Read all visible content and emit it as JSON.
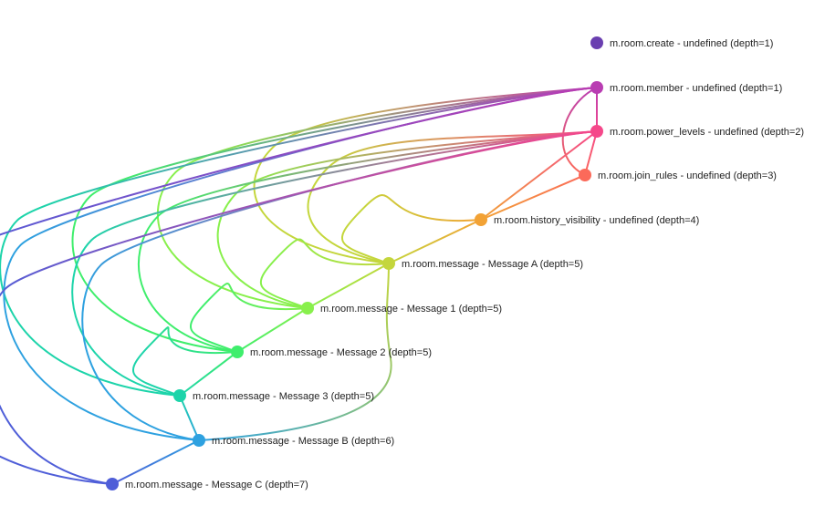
{
  "graph": {
    "nodes": [
      {
        "id": "create",
        "type": "m.room.create",
        "body": "undefined",
        "depth": 1,
        "label": "m.room.create - undefined (depth=1)",
        "color": "#6a3fb0"
      },
      {
        "id": "member",
        "type": "m.room.member",
        "body": "undefined",
        "depth": 1,
        "label": "m.room.member - undefined (depth=1)",
        "color": "#b93db2"
      },
      {
        "id": "power_levels",
        "type": "m.room.power_levels",
        "body": "undefined",
        "depth": 2,
        "label": "m.room.power_levels - undefined (depth=2)",
        "color": "#f5488a"
      },
      {
        "id": "join_rules",
        "type": "m.room.join_rules",
        "body": "undefined",
        "depth": 3,
        "label": "m.room.join_rules - undefined (depth=3)",
        "color": "#fb6a5a"
      },
      {
        "id": "history_visibility",
        "type": "m.room.history_visibility",
        "body": "undefined",
        "depth": 4,
        "label": "m.room.history_visibility - undefined (depth=4)",
        "color": "#f2a235"
      },
      {
        "id": "msgA",
        "type": "m.room.message",
        "body": "Message A",
        "depth": 5,
        "label": "m.room.message - Message A (depth=5)",
        "color": "#c4d63c"
      },
      {
        "id": "msg1",
        "type": "m.room.message",
        "body": "Message 1",
        "depth": 5,
        "label": "m.room.message - Message 1 (depth=5)",
        "color": "#88f04c"
      },
      {
        "id": "msg2",
        "type": "m.room.message",
        "body": "Message 2",
        "depth": 5,
        "label": "m.room.message - Message 2 (depth=5)",
        "color": "#3fee6c"
      },
      {
        "id": "msg3",
        "type": "m.room.message",
        "body": "Message 3",
        "depth": 5,
        "label": "m.room.message - Message 3 (depth=5)",
        "color": "#1dd4aa"
      },
      {
        "id": "msgB",
        "type": "m.room.message",
        "body": "Message B",
        "depth": 6,
        "label": "m.room.message - Message B (depth=6)",
        "color": "#2ea1e0"
      },
      {
        "id": "msgC",
        "type": "m.room.message",
        "body": "Message C",
        "depth": 7,
        "label": "m.room.message - Message C (depth=7)",
        "color": "#4f5ed8"
      }
    ],
    "edges": [
      {
        "from": "power_levels",
        "to": "member",
        "kind": "prev"
      },
      {
        "from": "join_rules",
        "to": "member",
        "kind": "auth"
      },
      {
        "from": "join_rules",
        "to": "power_levels",
        "kind": "prev"
      },
      {
        "from": "history_visibility",
        "to": "join_rules",
        "kind": "prev"
      },
      {
        "from": "history_visibility",
        "to": "power_levels",
        "kind": "prev"
      },
      {
        "from": "msgA",
        "to": "history_visibility",
        "kind": "prev"
      },
      {
        "from": "msgA",
        "to": "history_visibility",
        "kind": "auth"
      },
      {
        "from": "msgA",
        "to": "power_levels",
        "kind": "auth"
      },
      {
        "from": "msgA",
        "to": "member",
        "kind": "auth"
      },
      {
        "from": "msg1",
        "to": "msgA",
        "kind": "prev"
      },
      {
        "from": "msg1",
        "to": "msgA",
        "kind": "auth"
      },
      {
        "from": "msg1",
        "to": "power_levels",
        "kind": "auth"
      },
      {
        "from": "msg1",
        "to": "member",
        "kind": "auth"
      },
      {
        "from": "msg2",
        "to": "msg1",
        "kind": "prev"
      },
      {
        "from": "msg2",
        "to": "msg1",
        "kind": "auth"
      },
      {
        "from": "msg2",
        "to": "power_levels",
        "kind": "auth"
      },
      {
        "from": "msg2",
        "to": "member",
        "kind": "auth"
      },
      {
        "from": "msg3",
        "to": "msg2",
        "kind": "prev"
      },
      {
        "from": "msg3",
        "to": "msg2",
        "kind": "auth"
      },
      {
        "from": "msg3",
        "to": "power_levels",
        "kind": "auth"
      },
      {
        "from": "msg3",
        "to": "member",
        "kind": "auth"
      },
      {
        "from": "msgB",
        "to": "msgA",
        "kind": "auth"
      },
      {
        "from": "msgB",
        "to": "msg3",
        "kind": "prev"
      },
      {
        "from": "msgB",
        "to": "power_levels",
        "kind": "auth"
      },
      {
        "from": "msgB",
        "to": "member",
        "kind": "auth"
      },
      {
        "from": "msgC",
        "to": "msgB",
        "kind": "prev"
      },
      {
        "from": "msgC",
        "to": "power_levels",
        "kind": "auth"
      },
      {
        "from": "msgC",
        "to": "member",
        "kind": "auth"
      }
    ]
  }
}
